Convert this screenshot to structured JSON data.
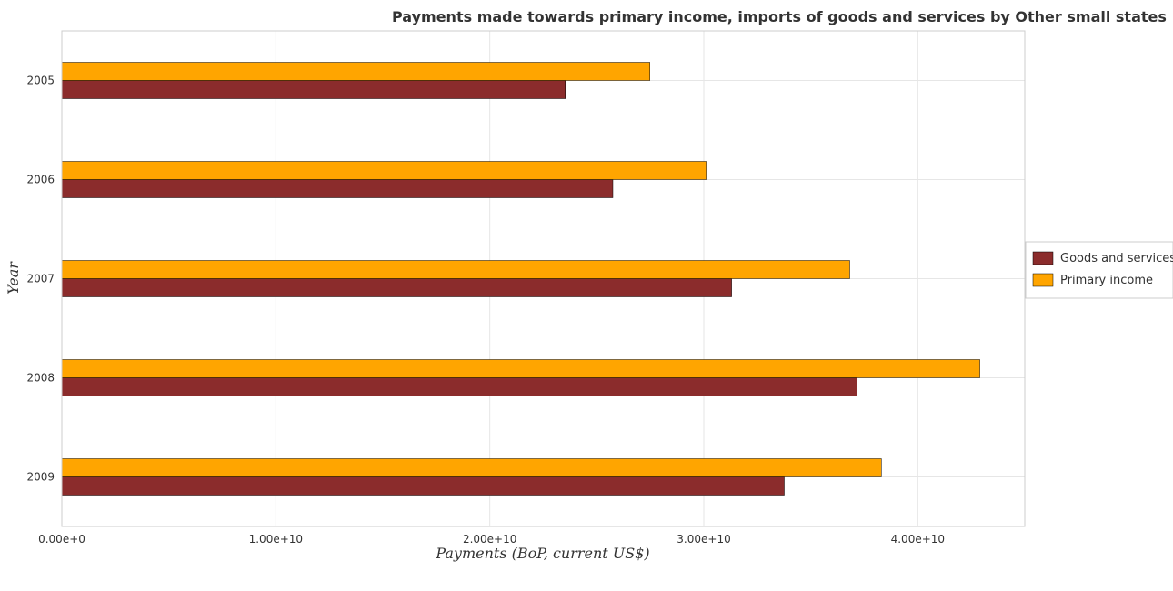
{
  "colors": {
    "goods": "#8b2c2c",
    "primary": "#ffa500",
    "grid": "#e6e6e6"
  },
  "chart_data": {
    "type": "bar",
    "orientation": "horizontal",
    "title": "Payments made towards primary income, imports of goods and services by Other small states",
    "xlabel": "Payments (BoP, current US$)",
    "ylabel": "Year",
    "categories": [
      "2005",
      "2006",
      "2007",
      "2008",
      "2009"
    ],
    "series": [
      {
        "name": "Goods and services",
        "values": [
          23530000000,
          25750000000,
          31300000000,
          37150000000,
          33760000000
        ]
      },
      {
        "name": "Primary income",
        "values": [
          27480000000,
          30110000000,
          36820000000,
          42900000000,
          38300000000
        ]
      }
    ],
    "xlim": [
      0,
      45000000000
    ],
    "xticks": [
      0,
      10000000000,
      20000000000,
      30000000000,
      40000000000
    ],
    "xtick_labels": [
      "0.00e+0",
      "1.00e+10",
      "2.00e+10",
      "3.00e+10",
      "4.00e+10"
    ],
    "grid": true,
    "legend_position": "right"
  }
}
